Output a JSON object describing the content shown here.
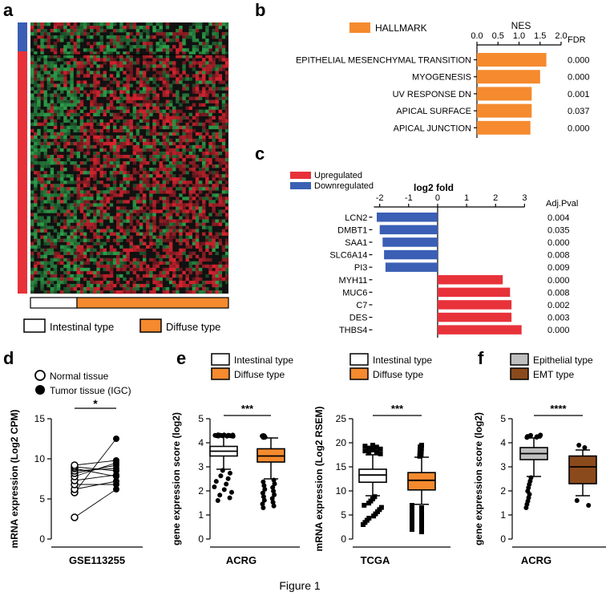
{
  "figure_caption": "Figure 1",
  "colors": {
    "up": "#e8323a",
    "down": "#3a5fb4",
    "orange": "#f58a2e",
    "heat_red": "#d8242f",
    "heat_green": "#2da04a",
    "heat_black": "#111111",
    "epithelial": "#bfbfbf",
    "emt": "#8b4a1c"
  },
  "chart_data": [
    {
      "id": "a",
      "type": "heatmap",
      "panel_label": "a",
      "description_legend": [
        {
          "label": "Intestinal type",
          "color": "#ffffff"
        },
        {
          "label": "Diffuse type",
          "color": "#f58a2e"
        }
      ],
      "row_groups": [
        {
          "name": "down",
          "color": "#3a5fb4",
          "fraction": 0.12
        },
        {
          "name": "up",
          "color": "#e8323a",
          "fraction": 0.88
        }
      ],
      "col_groups": [
        {
          "name": "Intestinal type",
          "fraction": 0.23
        },
        {
          "name": "Diffuse type",
          "fraction": 0.77
        }
      ]
    },
    {
      "id": "b",
      "type": "bar",
      "orientation": "horizontal",
      "panel_label": "b",
      "legend": "HALLMARK",
      "title": "NES",
      "categories": [
        "EPITHELIAL MESENCHYMAL TRANSITION",
        "MYOGENESIS",
        "UV RESPONSE DN",
        "APICAL SURFACE",
        "APICAL JUNCTION"
      ],
      "values": [
        1.65,
        1.5,
        1.3,
        1.3,
        1.27
      ],
      "fdr_header": "FDR",
      "fdr": [
        "0.000",
        "0.000",
        "0.001",
        "0.037",
        "0.000"
      ],
      "xlim": [
        0,
        2
      ],
      "xticks": [
        "0.0",
        "0.5",
        "1.0",
        "1.5",
        "2.0"
      ]
    },
    {
      "id": "c",
      "type": "bar",
      "orientation": "horizontal",
      "panel_label": "c",
      "title": "log2 fold",
      "legend": [
        {
          "label": "Upregulated",
          "color": "#e8323a"
        },
        {
          "label": "Downregulated",
          "color": "#3a5fb4"
        }
      ],
      "categories": [
        "LCN2",
        "DMBT1",
        "SAA1",
        "SLC6A14",
        "PI3",
        "MYH11",
        "MUC6",
        "C7",
        "DES",
        "THBS4"
      ],
      "values": [
        -2.1,
        -2.0,
        -1.9,
        -1.85,
        -1.8,
        2.25,
        2.5,
        2.55,
        2.55,
        2.9
      ],
      "pval_header": "Adj.Pval",
      "pvals": [
        "0.004",
        "0.035",
        "0.000",
        "0.008",
        "0.009",
        "0.000",
        "0.008",
        "0.002",
        "0.003",
        "0.000"
      ],
      "xlim": [
        -2.35,
        3.1
      ],
      "xticks": [
        "-2",
        "-1",
        "0",
        "1",
        "2",
        "3"
      ]
    },
    {
      "id": "d",
      "type": "scatter",
      "panel_label": "d",
      "legend": [
        {
          "label": "Normal tissue",
          "marker": "open-circle"
        },
        {
          "label": "Tumor tissue (IGC)",
          "marker": "filled-circle"
        }
      ],
      "ylabel": "mRNA expression (Log2 CPM)",
      "xlabel": "GSE113255",
      "ylim": [
        0,
        15
      ],
      "yticks": [
        "0",
        "5",
        "10",
        "15"
      ],
      "significance": "*",
      "normal": [
        2.7,
        5.8,
        6.2,
        6.8,
        7.3,
        7.8,
        8.2,
        8.5,
        8.8,
        9.0,
        9.2
      ],
      "tumor": [
        6.2,
        12.5,
        7.2,
        6.8,
        8.0,
        9.5,
        9.2,
        8.8,
        7.8,
        8.5,
        9.8
      ]
    },
    {
      "id": "e1",
      "type": "box",
      "panel_label": "e",
      "legend": [
        {
          "label": "Intestinal type",
          "color": "#ffffff"
        },
        {
          "label": "Diffuse type",
          "color": "#f58a2e"
        }
      ],
      "ylabel": "gene expression score (log2)",
      "xlabel": "ACRG",
      "ylim": [
        0,
        5
      ],
      "yticks": [
        "0",
        "1",
        "2",
        "3",
        "4",
        "5"
      ],
      "significance": "***",
      "series": [
        {
          "name": "Intestinal type",
          "q1": 3.45,
          "median": 3.65,
          "q3": 3.85,
          "whisker_low": 2.9,
          "whisker_high": 4.25
        },
        {
          "name": "Diffuse type",
          "q1": 3.2,
          "median": 3.45,
          "q3": 3.75,
          "whisker_low": 2.5,
          "whisker_high": 4.2
        }
      ]
    },
    {
      "id": "e2",
      "type": "box",
      "panel_label": "",
      "legend": [
        {
          "label": "Intestinal type",
          "color": "#ffffff"
        },
        {
          "label": "Diffuse type",
          "color": "#f58a2e"
        }
      ],
      "ylabel": "mRNA expression (Log2 RSEM)",
      "xlabel": "TCGA",
      "ylim": [
        0,
        25
      ],
      "yticks": [
        "0",
        "5",
        "10",
        "15",
        "20",
        "25"
      ],
      "significance": "***",
      "series": [
        {
          "name": "Intestinal type",
          "q1": 11.8,
          "median": 13.3,
          "q3": 14.5,
          "whisker_low": 9.0,
          "whisker_high": 17.5
        },
        {
          "name": "Diffuse type",
          "q1": 10.2,
          "median": 12.2,
          "q3": 13.8,
          "whisker_low": 7.2,
          "whisker_high": 17.0
        }
      ]
    },
    {
      "id": "f",
      "type": "box",
      "panel_label": "f",
      "legend": [
        {
          "label": "Epithelial type",
          "color": "#bfbfbf"
        },
        {
          "label": "EMT type",
          "color": "#8b4a1c"
        }
      ],
      "ylabel": "gene expression score (log2)",
      "xlabel": "ACRG",
      "ylim": [
        0,
        5
      ],
      "yticks": [
        "0",
        "1",
        "2",
        "3",
        "4",
        "5"
      ],
      "significance": "****",
      "series": [
        {
          "name": "Epithelial type",
          "q1": 3.3,
          "median": 3.55,
          "q3": 3.8,
          "whisker_low": 2.6,
          "whisker_high": 4.2
        },
        {
          "name": "EMT type",
          "q1": 2.3,
          "median": 3.0,
          "q3": 3.45,
          "whisker_low": 1.8,
          "whisker_high": 3.7
        }
      ]
    }
  ]
}
